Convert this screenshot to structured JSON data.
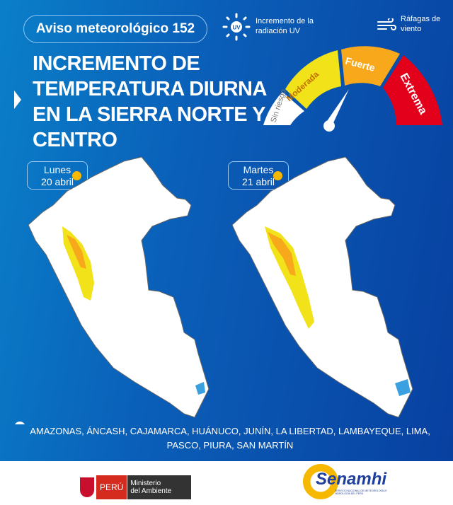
{
  "header": {
    "badge": "Aviso meteorológico 152",
    "uv_legend": [
      "Incremento de la",
      "radiación UV"
    ],
    "uv_icon": "uv-sun-icon",
    "wind_legend": [
      "Ráfagas de",
      "viento"
    ],
    "wind_icon": "wind-icon"
  },
  "title": [
    "INCREMENTO DE",
    "TEMPERATURA DIURNA",
    "EN LA SIERRA NORTE Y",
    "CENTRO"
  ],
  "gauge": {
    "levels": [
      {
        "label": "Sin riesgo",
        "color": "#ffffff"
      },
      {
        "label": "Moderada",
        "color": "#f2e21a"
      },
      {
        "label": "Fuerte",
        "color": "#f7a81b"
      },
      {
        "label": "Extrema",
        "color": "#e3001b"
      }
    ],
    "needle_level": "Fuerte"
  },
  "maps": [
    {
      "day": "Lunes",
      "date": "20 abril"
    },
    {
      "day": "Martes",
      "date": "21 abril"
    }
  ],
  "regions": "AMAZONAS, ÁNCASH, CAJAMARCA, HUÁNUCO, JUNÍN, LA LIBERTAD, LAMBAYEQUE, LIMA, PASCO, PIURA, SAN MARTÍN",
  "footer": {
    "peru": "PERÚ",
    "ministry": [
      "Ministerio",
      "del Ambiente"
    ],
    "senamhi": "Senamhi",
    "senamhi_sub": "SERVICIO NACIONAL DE METEOROLOGÍA E HIDROLOGÍA DEL PERÚ"
  },
  "colors": {
    "moderate": "#f2e21a",
    "strong": "#f7a81b",
    "lake": "#3aa0e0"
  }
}
